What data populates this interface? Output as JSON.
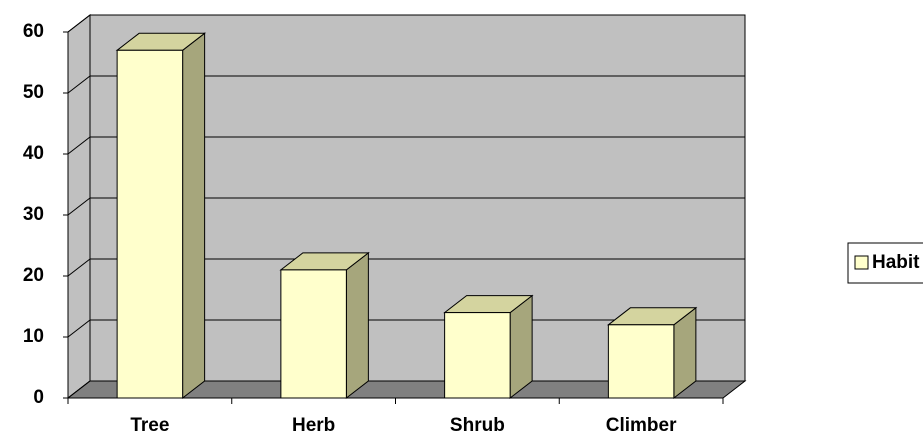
{
  "chart_data": {
    "type": "bar3d",
    "categories": [
      "Tree",
      "Herb",
      "Shrub",
      "Climber"
    ],
    "series": [
      {
        "name": "Habit",
        "color": "#ffffcc",
        "values": [
          57,
          21,
          14,
          12
        ]
      }
    ],
    "ylim": [
      0,
      60
    ],
    "yticks": [
      0,
      10,
      20,
      30,
      40,
      50,
      60
    ],
    "grid": true,
    "legend": "right"
  }
}
